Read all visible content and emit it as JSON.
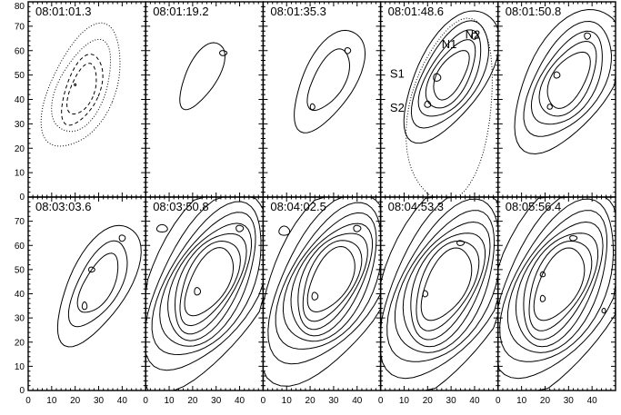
{
  "chart_data": {
    "type": "contour",
    "layout": {
      "rows": 2,
      "cols": 5
    },
    "x_axis": {
      "range": [
        0,
        50
      ],
      "ticks": [
        "0",
        "10",
        "20",
        "30",
        "40"
      ]
    },
    "y_axis": {
      "range": [
        0,
        80
      ],
      "ticks": [
        "0",
        "10",
        "20",
        "30",
        "40",
        "50",
        "60",
        "70",
        "80"
      ]
    },
    "line_color": "#000000",
    "annotations": [
      {
        "panel": 3,
        "text": "N1",
        "x": 26,
        "y": 61
      },
      {
        "panel": 3,
        "text": "N2",
        "x": 36,
        "y": 65
      },
      {
        "panel": 3,
        "text": "S1",
        "x": 4,
        "y": 49
      },
      {
        "panel": 3,
        "text": "S2",
        "x": 4,
        "y": 35
      }
    ],
    "panels": [
      {
        "time": "08:01:01.3",
        "features": [
          {
            "cx": 20,
            "cy": 46,
            "sx": 2.6,
            "sy": 8,
            "rot": -12,
            "levels": [
              1
            ],
            "style": "solid"
          },
          {
            "cx": 23,
            "cy": 44,
            "sx": 6,
            "sy": 13,
            "rot": -22,
            "levels": [
              0.5,
              0.7
            ],
            "style": "dashed"
          },
          {
            "cx": 23,
            "cy": 45,
            "sx": 10,
            "sy": 20,
            "rot": -25,
            "levels": [
              0.4,
              0.6
            ],
            "style": "dotted"
          }
        ]
      },
      {
        "time": "08:01:19.2",
        "features": [
          {
            "cx": 24,
            "cy": 50,
            "sx": 6,
            "sy": 14,
            "rot": -30,
            "amp": 1,
            "levels": [
              0.55
            ],
            "style": "solid"
          },
          {
            "cx": 33,
            "cy": 59,
            "sx": 3,
            "sy": 2,
            "rot": 0,
            "amp": 0.8,
            "levels": [
              0.7
            ],
            "style": "solid"
          }
        ]
      },
      {
        "time": "08:01:35.3",
        "features": [
          {
            "cx": 28,
            "cy": 48,
            "sx": 7,
            "sy": 15,
            "rot": -30,
            "amp": 1,
            "levels": [
              0.3,
              0.65
            ],
            "style": "solid"
          },
          {
            "cx": 36,
            "cy": 60,
            "sx": 2.5,
            "sy": 2.5,
            "rot": 0,
            "amp": 0.9,
            "levels": [
              0.8
            ],
            "style": "solid"
          },
          {
            "cx": 21,
            "cy": 37,
            "sx": 2,
            "sy": 2.5,
            "rot": 0,
            "amp": 0.9,
            "levels": [
              0.8
            ],
            "style": "solid"
          }
        ]
      },
      {
        "time": "08:01:48.6",
        "features": [
          {
            "cx": 30,
            "cy": 50,
            "sx": 8,
            "sy": 17,
            "rot": -32,
            "amp": 1,
            "levels": [
              0.2,
              0.35,
              0.5,
              0.65,
              0.8
            ],
            "style": "solid"
          },
          {
            "cx": 40,
            "cy": 66,
            "sx": 2.5,
            "sy": 2.5,
            "rot": 0,
            "amp": 0.8,
            "levels": [
              0.7
            ],
            "style": "solid"
          },
          {
            "cx": 24,
            "cy": 49,
            "sx": 3,
            "sy": 3,
            "rot": 0,
            "amp": 0.8,
            "levels": [
              0.7
            ],
            "style": "solid"
          },
          {
            "cx": 20,
            "cy": 38,
            "sx": 2.5,
            "sy": 2.5,
            "rot": 0,
            "amp": 0.8,
            "levels": [
              0.7
            ],
            "style": "solid"
          },
          {
            "cx": 30,
            "cy": 35,
            "sx": 12,
            "sy": 26,
            "rot": -10,
            "amp": 1,
            "levels": [
              0.35
            ],
            "style": "dotted"
          }
        ]
      },
      {
        "time": "08:01:50.8",
        "features": [
          {
            "cx": 30,
            "cy": 48,
            "sx": 9,
            "sy": 17,
            "rot": -33,
            "amp": 1,
            "levels": [
              0.15,
              0.3,
              0.45,
              0.6,
              0.75
            ],
            "style": "solid"
          },
          {
            "cx": 38,
            "cy": 66,
            "sx": 2.5,
            "sy": 2.5,
            "rot": 0,
            "amp": 0.8,
            "levels": [
              0.7
            ],
            "style": "solid"
          },
          {
            "cx": 25,
            "cy": 50,
            "sx": 2.5,
            "sy": 2.5,
            "rot": 0,
            "amp": 0.8,
            "levels": [
              0.7
            ],
            "style": "solid"
          },
          {
            "cx": 22,
            "cy": 37,
            "sx": 2,
            "sy": 2,
            "rot": 0,
            "amp": 0.8,
            "levels": [
              0.7
            ],
            "style": "solid"
          }
        ]
      },
      {
        "time": "08:03:03.6",
        "features": [
          {
            "cx": 30,
            "cy": 44,
            "sx": 8,
            "sy": 18,
            "rot": -30,
            "amp": 1,
            "levels": [
              0.3,
              0.55,
              0.75
            ],
            "style": "solid"
          },
          {
            "cx": 40,
            "cy": 63,
            "sx": 2.5,
            "sy": 2.5,
            "rot": 0,
            "amp": 0.8,
            "levels": [
              0.7
            ],
            "style": "solid"
          },
          {
            "cx": 27,
            "cy": 50,
            "sx": 2.5,
            "sy": 2,
            "rot": 0,
            "amp": 0.8,
            "levels": [
              0.7
            ],
            "style": "solid"
          },
          {
            "cx": 24,
            "cy": 35,
            "sx": 2,
            "sy": 3,
            "rot": 0,
            "amp": 0.8,
            "levels": [
              0.7
            ],
            "style": "solid"
          }
        ]
      },
      {
        "time": "08:03:50.8",
        "features": [
          {
            "cx": 27,
            "cy": 45,
            "sx": 11,
            "sy": 22,
            "rot": -30,
            "amp": 1,
            "levels": [
              0.08,
              0.18,
              0.28,
              0.38,
              0.48,
              0.58,
              0.68,
              0.78
            ],
            "style": "solid"
          },
          {
            "cx": 40,
            "cy": 67,
            "sx": 3,
            "sy": 2.5,
            "rot": 0,
            "amp": 0.8,
            "levels": [
              0.7
            ],
            "style": "solid"
          },
          {
            "cx": 22,
            "cy": 41,
            "sx": 2.5,
            "sy": 3,
            "rot": 0,
            "amp": 0.8,
            "levels": [
              0.7
            ],
            "style": "solid"
          },
          {
            "cx": 7,
            "cy": 67,
            "sx": 3,
            "sy": 2,
            "rot": 0,
            "amp": 0.8,
            "levels": [
              0.6
            ],
            "style": "solid"
          }
        ]
      },
      {
        "time": "08:04:02.5",
        "features": [
          {
            "cx": 29,
            "cy": 46,
            "sx": 11,
            "sy": 21,
            "rot": -30,
            "amp": 1,
            "levels": [
              0.08,
              0.18,
              0.28,
              0.38,
              0.48,
              0.58,
              0.68,
              0.78
            ],
            "style": "solid"
          },
          {
            "cx": 40,
            "cy": 67,
            "sx": 3,
            "sy": 2.5,
            "rot": 0,
            "amp": 0.8,
            "levels": [
              0.7
            ],
            "style": "solid"
          },
          {
            "cx": 22,
            "cy": 39,
            "sx": 2.5,
            "sy": 3,
            "rot": 0,
            "amp": 0.8,
            "levels": [
              0.7
            ],
            "style": "solid"
          },
          {
            "cx": 9,
            "cy": 66,
            "sx": 3,
            "sy": 2.5,
            "rot": 0,
            "amp": 0.8,
            "levels": [
              0.6
            ],
            "style": "solid"
          }
        ]
      },
      {
        "time": "08:04:53.3",
        "features": [
          {
            "cx": 28,
            "cy": 44,
            "sx": 12,
            "sy": 23,
            "rot": -28,
            "amp": 1,
            "levels": [
              0.08,
              0.18,
              0.28,
              0.38,
              0.48,
              0.58,
              0.68,
              0.78
            ],
            "style": "solid"
          },
          {
            "cx": 34,
            "cy": 61,
            "sx": 3,
            "sy": 2,
            "rot": 0,
            "amp": 0.8,
            "levels": [
              0.7
            ],
            "style": "solid"
          },
          {
            "cx": 19,
            "cy": 40,
            "sx": 2,
            "sy": 2.5,
            "rot": 0,
            "amp": 0.8,
            "levels": [
              0.7
            ],
            "style": "solid"
          }
        ]
      },
      {
        "time": "08:05:56.4",
        "features": [
          {
            "cx": 26,
            "cy": 44,
            "sx": 12,
            "sy": 23,
            "rot": -28,
            "amp": 1,
            "levels": [
              0.08,
              0.18,
              0.28,
              0.38,
              0.48,
              0.58,
              0.68,
              0.78
            ],
            "style": "solid"
          },
          {
            "cx": 32,
            "cy": 63,
            "sx": 3,
            "sy": 2,
            "rot": 0,
            "amp": 0.8,
            "levels": [
              0.7
            ],
            "style": "solid"
          },
          {
            "cx": 19,
            "cy": 38,
            "sx": 2,
            "sy": 2.5,
            "rot": 0,
            "amp": 0.8,
            "levels": [
              0.7
            ],
            "style": "solid"
          },
          {
            "cx": 19,
            "cy": 48,
            "sx": 2,
            "sy": 2,
            "rot": 0,
            "amp": 0.8,
            "levels": [
              0.7
            ],
            "style": "solid"
          },
          {
            "cx": 45,
            "cy": 33,
            "sx": 0.8,
            "sy": 1,
            "rot": 0,
            "amp": 0.8,
            "levels": [
              0.5
            ],
            "style": "solid"
          }
        ]
      }
    ]
  }
}
